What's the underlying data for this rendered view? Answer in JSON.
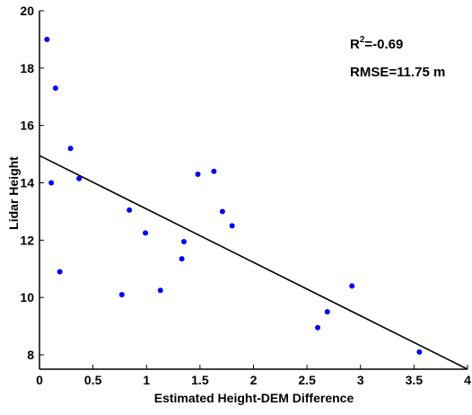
{
  "chart_data": {
    "type": "scatter",
    "title": "",
    "xlabel": "Estimated Height-DEM Difference",
    "ylabel": "Lidar Height",
    "xlim": [
      0,
      4
    ],
    "ylim": [
      7.5,
      20
    ],
    "xticks": [
      0,
      0.5,
      1,
      1.5,
      2,
      2.5,
      3,
      3.5,
      4
    ],
    "xtick_labels": [
      "0",
      "0.5",
      "1",
      "1.5",
      "2",
      "2.5",
      "3",
      "3.5",
      "4"
    ],
    "yticks": [
      8,
      10,
      12,
      14,
      16,
      18,
      20
    ],
    "ytick_labels": [
      "8",
      "10",
      "12",
      "14",
      "16",
      "18",
      "20"
    ],
    "grid": false,
    "point_color": "#0000ee",
    "line_color": "#000000",
    "points": [
      {
        "x": 0.07,
        "y": 19.0
      },
      {
        "x": 0.15,
        "y": 17.3
      },
      {
        "x": 0.29,
        "y": 15.2
      },
      {
        "x": 0.11,
        "y": 14.0
      },
      {
        "x": 0.37,
        "y": 14.15
      },
      {
        "x": 0.19,
        "y": 10.9
      },
      {
        "x": 0.77,
        "y": 10.1
      },
      {
        "x": 0.84,
        "y": 13.05
      },
      {
        "x": 0.99,
        "y": 12.25
      },
      {
        "x": 1.13,
        "y": 10.25
      },
      {
        "x": 1.33,
        "y": 11.35
      },
      {
        "x": 1.35,
        "y": 11.95
      },
      {
        "x": 1.48,
        "y": 14.3
      },
      {
        "x": 1.63,
        "y": 14.4
      },
      {
        "x": 1.71,
        "y": 13.0
      },
      {
        "x": 1.8,
        "y": 12.5
      },
      {
        "x": 2.6,
        "y": 8.95
      },
      {
        "x": 2.69,
        "y": 9.5
      },
      {
        "x": 2.92,
        "y": 10.4
      },
      {
        "x": 3.55,
        "y": 8.1
      }
    ],
    "fit_line": {
      "x": [
        0,
        4
      ],
      "y": [
        14.95,
        7.5
      ]
    },
    "annotations": {
      "r2_label": "R",
      "r2_sup": "2",
      "r2_value": "=-0.69",
      "rmse": "RMSE=11.75 m"
    }
  }
}
